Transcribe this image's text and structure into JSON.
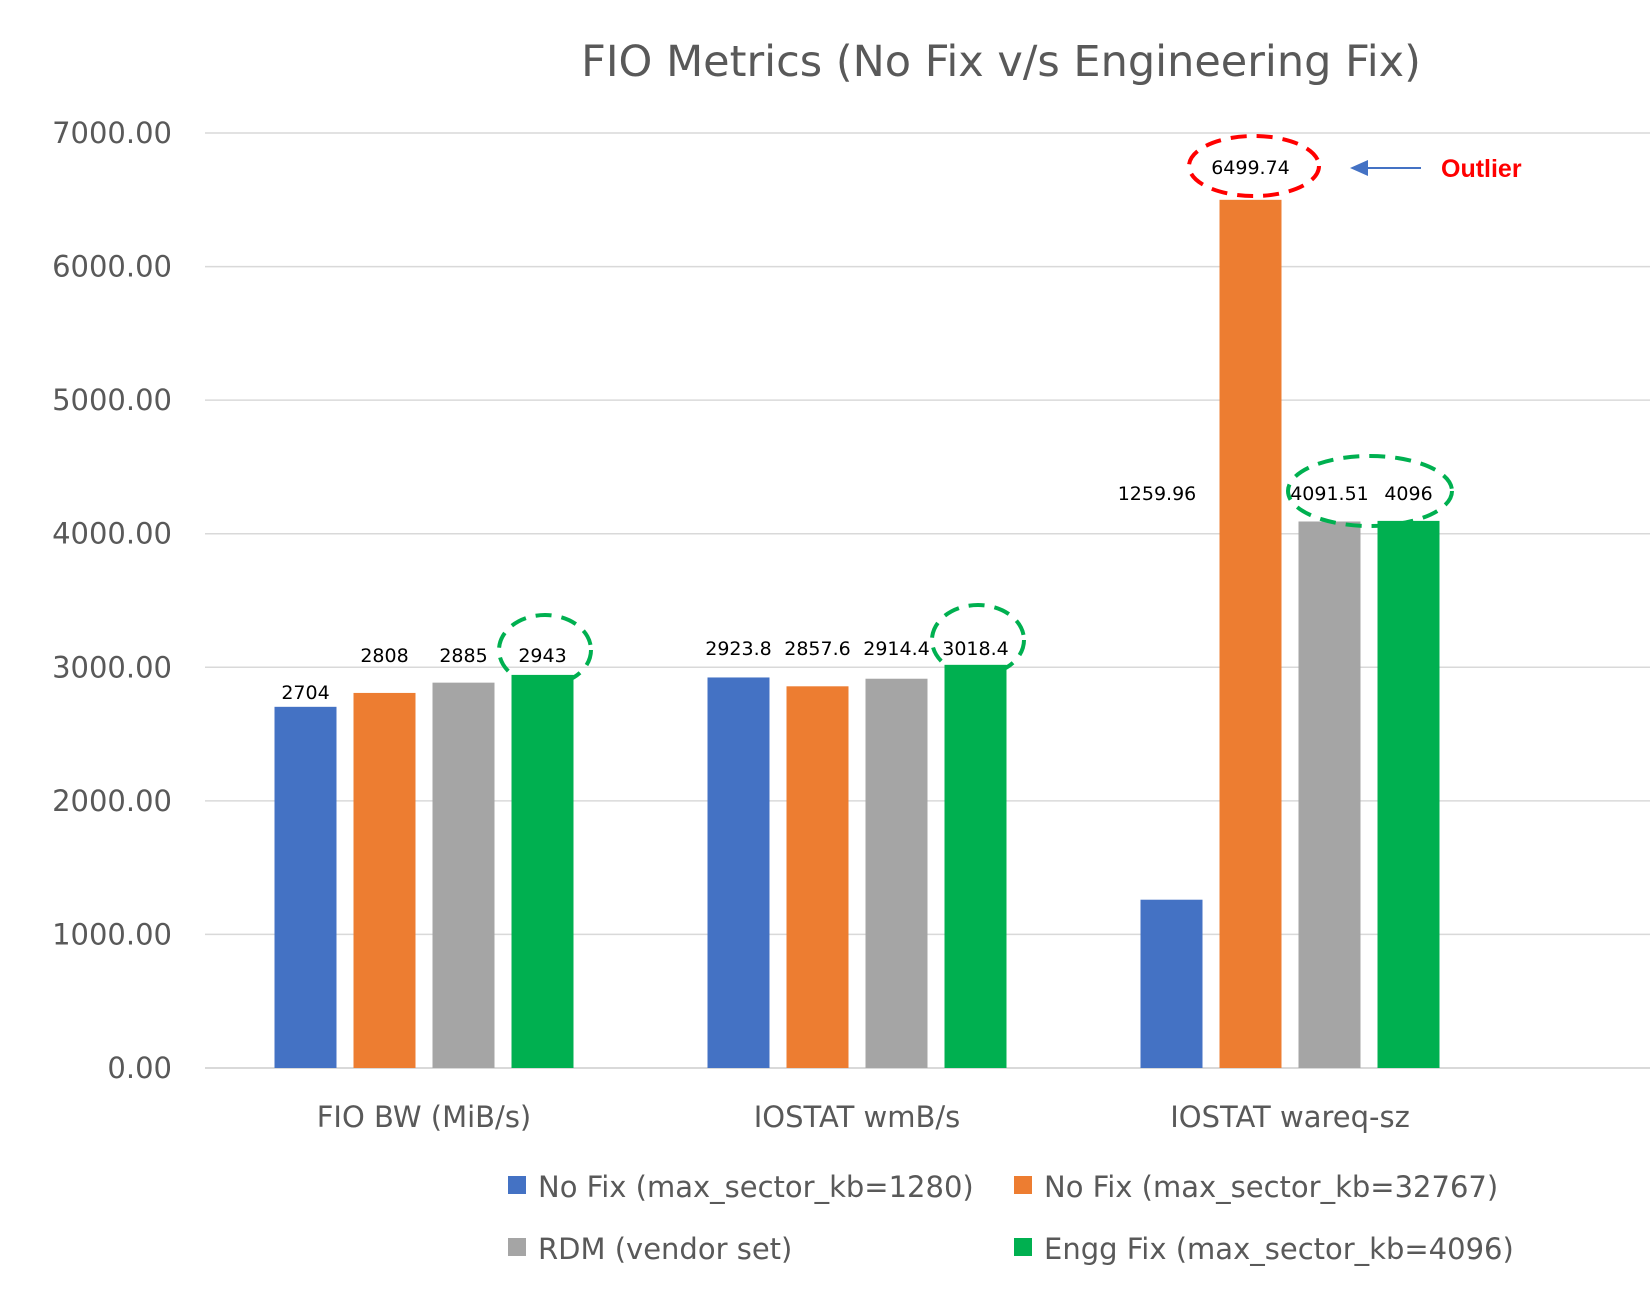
{
  "chart_data": {
    "type": "bar",
    "title": "FIO Metrics (No Fix v/s Engineering Fix)",
    "xlabel": "",
    "ylabel": "",
    "ylim": [
      0,
      7000
    ],
    "yticks": [
      0,
      1000,
      2000,
      3000,
      4000,
      5000,
      6000,
      7000
    ],
    "ytick_labels": [
      "0.00",
      "1000.00",
      "2000.00",
      "3000.00",
      "4000.00",
      "5000.00",
      "6000.00",
      "7000.00"
    ],
    "grid": true,
    "legend_position": "bottom",
    "categories": [
      "FIO BW (MiB/s)",
      "IOSTAT wmB/s",
      "IOSTAT wareq-sz"
    ],
    "series": [
      {
        "name": "No Fix (max_sector_kb=1280)",
        "color": "#4472C4",
        "values": [
          2704,
          2923.8,
          1259.96
        ],
        "labels": [
          "2704",
          "2923.8",
          "1259.96"
        ]
      },
      {
        "name": "No Fix (max_sector_kb=32767)",
        "color": "#ED7D31",
        "values": [
          2808,
          2857.6,
          6499.74
        ],
        "labels": [
          "2808",
          "2857.6",
          "6499.74"
        ]
      },
      {
        "name": "RDM (vendor set)",
        "color": "#A5A5A5",
        "values": [
          2885,
          2914.4,
          4091.51
        ],
        "labels": [
          "2885",
          "2914.4",
          "4091.51"
        ]
      },
      {
        "name": "Engg Fix (max_sector_kb=4096)",
        "color": "#00B050",
        "values": [
          2943,
          3018.4,
          4096
        ],
        "labels": [
          "2943",
          "3018.4",
          "4096"
        ]
      }
    ],
    "annotations": [
      {
        "type": "dashed-ellipse",
        "color": "#00B050",
        "target": "FIO BW (MiB/s) / Engg Fix",
        "text": ""
      },
      {
        "type": "dashed-ellipse",
        "color": "#00B050",
        "target": "IOSTAT wmB/s / Engg Fix",
        "text": ""
      },
      {
        "type": "dashed-ellipse",
        "color": "#00B050",
        "target": "IOSTAT wareq-sz / RDM + Engg Fix",
        "text": ""
      },
      {
        "type": "dashed-ellipse",
        "color": "#FF0000",
        "target": "IOSTAT wareq-sz / No Fix (32767)",
        "text": ""
      },
      {
        "type": "arrow",
        "color": "#4472C4",
        "text": "Outlier",
        "text_color": "#FF0000"
      }
    ]
  },
  "colors": {
    "title": "#595959",
    "axis_text": "#595959",
    "gridline": "#D9D9D9",
    "data_label": "#000000",
    "outlier_text": "#FF0000",
    "outlier_arrow": "#4472C4",
    "highlight_green": "#00B050",
    "highlight_red": "#FF0000"
  }
}
